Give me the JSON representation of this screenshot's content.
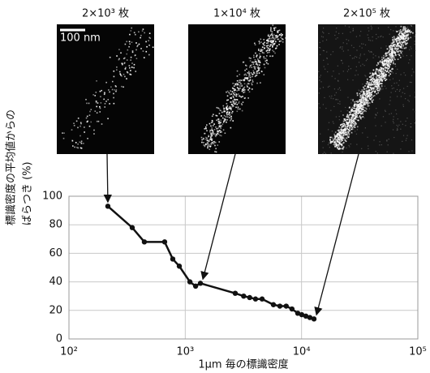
{
  "chart_data": {
    "type": "line",
    "annotations": [
      "2×10³ 枚",
      "1×10⁴ 枚",
      "2×10⁵ 枚"
    ],
    "scale_bar_label": "100 nm",
    "x_label": "1μm 毎の標識密度",
    "y_label": [
      "標識密度の平均値からの",
      "ばらつき (%)"
    ],
    "x": [
      216,
      350,
      445,
      665,
      781,
      889,
      1097,
      1228,
      1350,
      2690,
      3180,
      3580,
      4020,
      4580,
      5730,
      6510,
      7380,
      8270,
      9280,
      10050,
      10900,
      11800,
      12800
    ],
    "series": [
      {
        "color": "#111111",
        "values": [
          93,
          78,
          68,
          68,
          56,
          51,
          40,
          37,
          39,
          32,
          30,
          29,
          28,
          28,
          24,
          23,
          23,
          21,
          18,
          17,
          16,
          15,
          14
        ]
      }
    ],
    "xlim": [
      100,
      100000
    ],
    "xscale": "log",
    "xticks": [
      {
        "value": 100,
        "label": "10²"
      },
      {
        "value": 1000,
        "label": "10³"
      },
      {
        "value": 10000,
        "label": "10⁴"
      },
      {
        "value": 100000,
        "label": "10⁵"
      }
    ],
    "ylim": [
      0,
      100
    ],
    "yticks": [
      0,
      20,
      40,
      60,
      80,
      100
    ],
    "grid": true
  }
}
